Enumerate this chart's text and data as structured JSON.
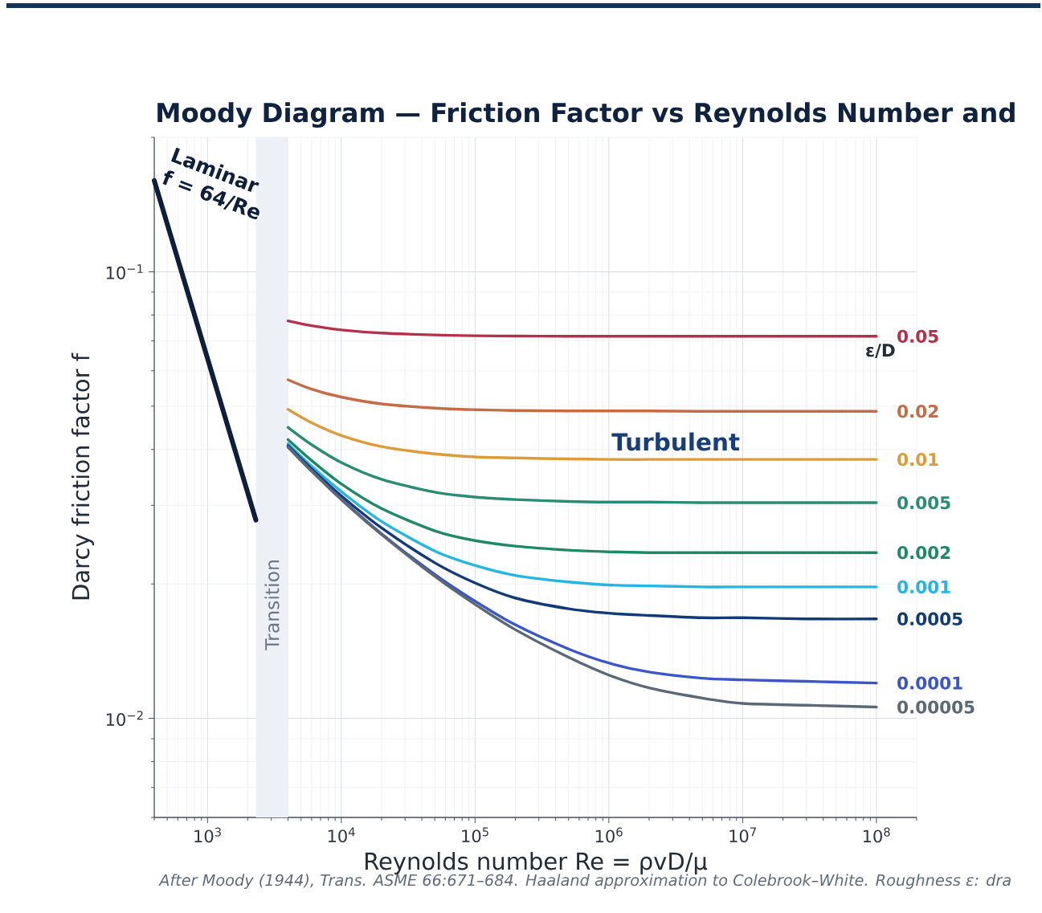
{
  "chart_data": {
    "type": "line",
    "title": "Moody Diagram — Friction Factor vs Reynolds Number and",
    "xlabel": "Reynolds number  Re = ρvD/μ",
    "ylabel": "Darcy friction factor  f",
    "log": "xy",
    "grid": true,
    "xlim": [
      400,
      200000000
    ],
    "ylim": [
      0.006,
      0.2
    ],
    "xticks": [
      {
        "value": 1000,
        "label": "10$^{3}$"
      },
      {
        "value": 10000,
        "label": "10$^{4}$"
      },
      {
        "value": 100000,
        "label": "10$^{5}$"
      },
      {
        "value": 1000000,
        "label": "10$^{6}$"
      },
      {
        "value": 10000000,
        "label": "10$^{7}$"
      },
      {
        "value": 100000000,
        "label": "10$^{8}$"
      }
    ],
    "yticks": [
      {
        "value": 0.01,
        "label": "10$^{−2}$"
      },
      {
        "value": 0.1,
        "label": "10$^{−1}$"
      }
    ],
    "x": [
      4000,
      6000,
      10000,
      20000,
      50000,
      100000,
      200000,
      500000,
      1000000,
      2000000,
      5000000,
      10000000,
      30000000,
      100000000
    ],
    "series": [
      {
        "name": "Laminar",
        "color": "#0d1f3c",
        "x": [
          400,
          2300
        ],
        "values": [
          0.16,
          0.0278
        ]
      },
      {
        "name": "0.05",
        "color": "#b5304b",
        "values": [
          0.0776,
          0.0757,
          0.0741,
          0.0729,
          0.0722,
          0.0719,
          0.0718,
          0.0717,
          0.0717,
          0.0717,
          0.0717,
          0.0717,
          0.0717,
          0.0717
        ]
      },
      {
        "name": "0.02",
        "color": "#c56b45",
        "values": [
          0.0573,
          0.0546,
          0.0524,
          0.0506,
          0.0495,
          0.0491,
          0.0489,
          0.0488,
          0.0488,
          0.0488,
          0.0487,
          0.0487,
          0.0487,
          0.0487
        ]
      },
      {
        "name": "0.01",
        "color": "#dd9b3a",
        "values": [
          0.0492,
          0.0459,
          0.043,
          0.0406,
          0.0391,
          0.0385,
          0.0383,
          0.0381,
          0.038,
          0.038,
          0.038,
          0.038,
          0.038,
          0.038
        ]
      },
      {
        "name": "0.005",
        "color": "#2a8c74",
        "values": [
          0.0448,
          0.041,
          0.0374,
          0.0343,
          0.0321,
          0.0313,
          0.0309,
          0.0306,
          0.0305,
          0.0305,
          0.0304,
          0.0304,
          0.0304,
          0.0304
        ]
      },
      {
        "name": "0.002",
        "color": "#1e8a64",
        "values": [
          0.0421,
          0.0378,
          0.0335,
          0.0295,
          0.0263,
          0.025,
          0.0243,
          0.0238,
          0.0236,
          0.0235,
          0.0235,
          0.0235,
          0.0235,
          0.0235
        ]
      },
      {
        "name": "0.001",
        "color": "#23b5e3",
        "values": [
          0.0412,
          0.0367,
          0.0322,
          0.0276,
          0.0237,
          0.022,
          0.0209,
          0.0202,
          0.0199,
          0.0198,
          0.0197,
          0.0197,
          0.0197,
          0.0197
        ]
      },
      {
        "name": "0.0005",
        "color": "#113a78",
        "values": [
          0.0408,
          0.0362,
          0.0315,
          0.0267,
          0.0223,
          0.0201,
          0.0186,
          0.0176,
          0.0172,
          0.017,
          0.0168,
          0.0168,
          0.0167,
          0.0167
        ]
      },
      {
        "name": "0.0001",
        "color": "#3a56c8",
        "values": [
          0.0405,
          0.0358,
          0.031,
          0.0259,
          0.021,
          0.0183,
          0.0162,
          0.0143,
          0.0133,
          0.0127,
          0.0123,
          0.0122,
          0.0121,
          0.012
        ]
      },
      {
        "name": "0.00005",
        "color": "#5a6878",
        "values": [
          0.0405,
          0.0358,
          0.0309,
          0.0258,
          0.0208,
          0.018,
          0.0158,
          0.0137,
          0.0125,
          0.0117,
          0.0111,
          0.0108,
          0.0107,
          0.0106
        ]
      }
    ],
    "bands": [
      {
        "axis": "x",
        "from": 2300,
        "to": 4000,
        "label": "Transition",
        "color": "#edf1f5"
      }
    ],
    "annotations": [
      "f = 64/Re",
      "Turbulent",
      "ε/D",
      "After Moody (1944), Trans. ASME 66:671–684. Haaland approximation to Colebrook–White. Roughness ε: dra"
    ]
  }
}
